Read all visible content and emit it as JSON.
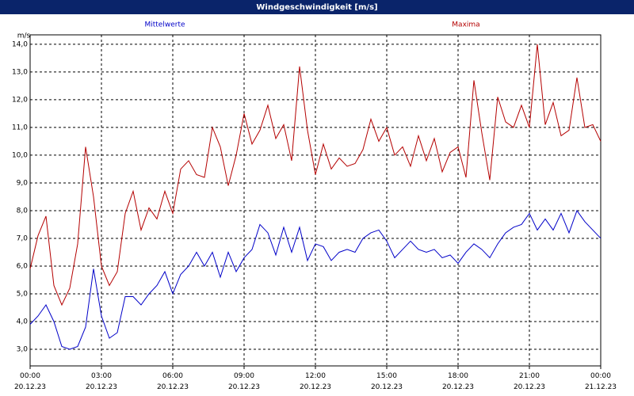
{
  "chart_data": {
    "type": "line",
    "title": "Windgeschwindigkeit [m/s]",
    "y_unit": "m/s",
    "x": [
      0,
      20,
      40,
      60,
      80,
      100,
      120,
      140,
      160,
      180,
      200,
      220,
      240,
      260,
      280,
      300,
      320,
      340,
      360,
      380,
      400,
      420,
      440,
      460,
      480,
      500,
      520,
      540,
      560,
      580,
      600,
      620,
      640,
      660,
      680,
      700,
      720,
      740,
      760,
      780,
      800,
      820,
      840,
      860,
      880,
      900,
      920,
      940,
      960,
      980,
      1000,
      1020,
      1040,
      1060,
      1080,
      1100,
      1120,
      1140,
      1160,
      1180,
      1200,
      1220,
      1240,
      1260,
      1280,
      1300,
      1320,
      1340,
      1360,
      1380,
      1400,
      1420,
      1440
    ],
    "series": [
      {
        "name": "Mittelwerte",
        "color": "#0000c8",
        "values": [
          3.9,
          4.2,
          4.6,
          4.0,
          3.1,
          3.0,
          3.1,
          3.8,
          5.9,
          4.2,
          3.4,
          3.6,
          4.9,
          4.9,
          4.6,
          5.0,
          5.3,
          5.8,
          5.0,
          5.7,
          6.0,
          6.5,
          6.0,
          6.5,
          5.6,
          6.5,
          5.8,
          6.3,
          6.6,
          7.5,
          7.2,
          6.4,
          7.4,
          6.5,
          7.4,
          6.2,
          6.8,
          6.7,
          6.2,
          6.5,
          6.6,
          6.5,
          7.0,
          7.2,
          7.3,
          6.9,
          6.3,
          6.6,
          6.9,
          6.6,
          6.5,
          6.6,
          6.3,
          6.4,
          6.1,
          6.5,
          6.8,
          6.6,
          6.3,
          6.8,
          7.2,
          7.4,
          7.5,
          7.9,
          7.3,
          7.7,
          7.3,
          7.9,
          7.2,
          8.0,
          7.6,
          7.3,
          7.0
        ]
      },
      {
        "name": "Maxima",
        "color": "#b40000",
        "values": [
          5.9,
          7.1,
          7.8,
          5.3,
          4.6,
          5.2,
          6.8,
          10.3,
          8.5,
          6.0,
          5.3,
          5.8,
          7.9,
          8.7,
          7.3,
          8.1,
          7.7,
          8.7,
          7.9,
          9.5,
          9.8,
          9.3,
          9.2,
          11.0,
          10.3,
          8.9,
          10.0,
          11.5,
          10.4,
          10.9,
          11.8,
          10.6,
          11.1,
          9.8,
          13.2,
          10.9,
          9.3,
          10.4,
          9.5,
          9.9,
          9.6,
          9.7,
          10.2,
          11.3,
          10.5,
          11.0,
          10.0,
          10.3,
          9.6,
          10.7,
          9.8,
          10.6,
          9.4,
          10.1,
          10.3,
          9.2,
          12.7,
          10.8,
          9.1,
          12.1,
          11.2,
          11.0,
          11.8,
          11.0,
          14.0,
          11.1,
          11.9,
          10.7,
          10.9,
          12.8,
          11.0,
          11.1,
          10.5
        ]
      }
    ],
    "xlim": [
      0,
      1440
    ],
    "xticks": [
      {
        "value": 0,
        "label": "00:00\n20.12.23"
      },
      {
        "value": 180,
        "label": "03:00\n20.12.23"
      },
      {
        "value": 360,
        "label": "06:00\n20.12.23"
      },
      {
        "value": 540,
        "label": "09:00\n20.12.23"
      },
      {
        "value": 720,
        "label": "12:00\n20.12.23"
      },
      {
        "value": 900,
        "label": "15:00\n20.12.23"
      },
      {
        "value": 1080,
        "label": "18:00\n20.12.23"
      },
      {
        "value": 1260,
        "label": "21:00\n20.12.23"
      },
      {
        "value": 1440,
        "label": "00:00\n21.12.23"
      }
    ],
    "ylim": [
      2.4,
      14.34
    ],
    "yticks": [
      {
        "value": 3,
        "label": "3,0"
      },
      {
        "value": 4,
        "label": "4,0"
      },
      {
        "value": 5,
        "label": "5,0"
      },
      {
        "value": 6,
        "label": "6,0"
      },
      {
        "value": 7,
        "label": "7,0"
      },
      {
        "value": 8,
        "label": "8,0"
      },
      {
        "value": 9,
        "label": "9,0"
      },
      {
        "value": 10,
        "label": "10,0"
      },
      {
        "value": 11,
        "label": "11,0"
      },
      {
        "value": 12,
        "label": "12,0"
      },
      {
        "value": 13,
        "label": "13,0"
      },
      {
        "value": 14,
        "label": "14,0"
      }
    ],
    "grid": true
  }
}
